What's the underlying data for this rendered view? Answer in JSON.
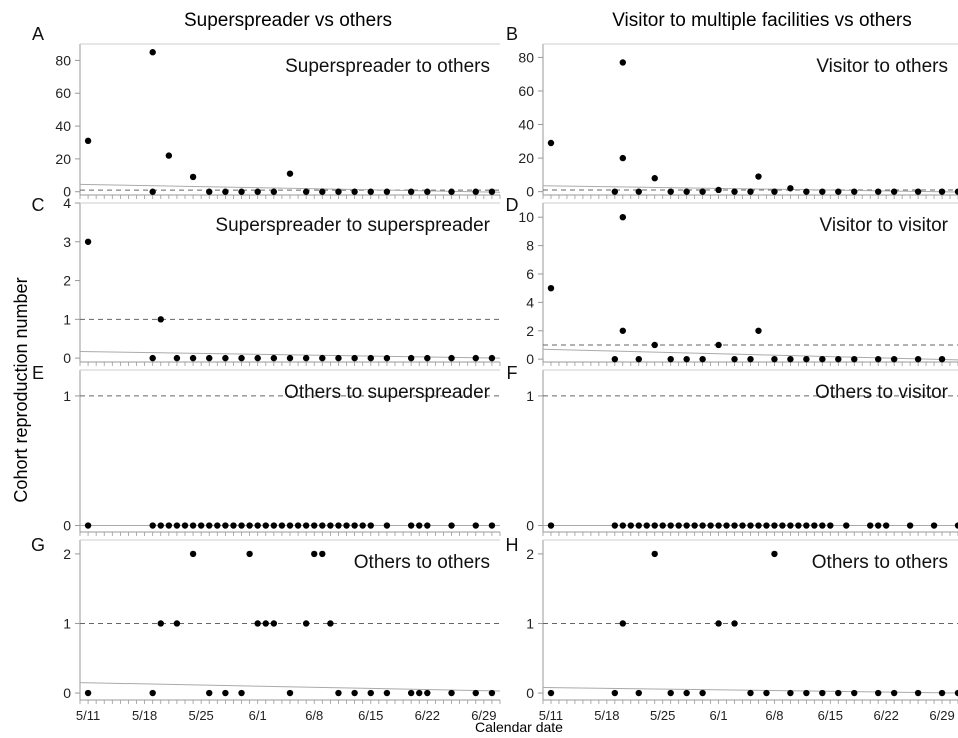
{
  "figure": {
    "col_titles": [
      "Superspreader vs others",
      "Visitor to multiple facilities vs others"
    ],
    "ylabel": "Cohort reproduction number",
    "xlabel": "Calendar date",
    "x_ticks": [
      "5/11",
      "5/18",
      "5/25",
      "6/1",
      "6/8",
      "6/15",
      "6/22",
      "6/29"
    ],
    "colors": {
      "points": "#000000",
      "axis": "#999999",
      "trend": "#aaaaaa",
      "reference": "#666666"
    }
  },
  "chart_data": [
    {
      "letter": "A",
      "title": "Superspreader to others",
      "type": "scatter",
      "ylim": [
        -2,
        90
      ],
      "yticks": [
        0,
        20,
        40,
        60,
        80
      ],
      "ref": 1,
      "trend": [
        4.5,
        -0.3
      ],
      "x": [
        "5/11",
        "5/19",
        "5/19",
        "5/21",
        "5/24",
        "5/26",
        "5/28",
        "5/30",
        "6/1",
        "6/3",
        "6/5",
        "6/7",
        "6/9",
        "6/11",
        "6/13",
        "6/15",
        "6/17",
        "6/20",
        "6/22",
        "6/25",
        "6/28",
        "6/30"
      ],
      "y": [
        31,
        0,
        85,
        22,
        9,
        0,
        0,
        0,
        0,
        0,
        11,
        0,
        0,
        0,
        0,
        0,
        0,
        0,
        0,
        0,
        0,
        0
      ]
    },
    {
      "letter": "B",
      "title": "Visitor to others",
      "type": "scatter",
      "ylim": [
        -2,
        88
      ],
      "yticks": [
        0,
        20,
        40,
        60,
        80
      ],
      "ref": 1,
      "trend": [
        3.5,
        -0.2
      ],
      "x": [
        "5/11",
        "5/19",
        "5/20",
        "5/20",
        "5/22",
        "5/24",
        "5/26",
        "5/28",
        "5/30",
        "6/1",
        "6/3",
        "6/5",
        "6/6",
        "6/8",
        "6/10",
        "6/12",
        "6/14",
        "6/16",
        "6/18",
        "6/21",
        "6/23",
        "6/26",
        "6/29",
        "7/1"
      ],
      "y": [
        29,
        0,
        77,
        20,
        0,
        8,
        0,
        0,
        0,
        1,
        0,
        0,
        9,
        0,
        2,
        0,
        0,
        0,
        0,
        0,
        0,
        0,
        0,
        0
      ]
    },
    {
      "letter": "C",
      "title": "Superspreader to superspreader",
      "type": "scatter",
      "ylim": [
        -0.1,
        4
      ],
      "yticks": [
        0,
        1,
        2,
        3,
        4
      ],
      "ref": 1,
      "trend": [
        0.17,
        0.0
      ],
      "x": [
        "5/11",
        "5/19",
        "5/20",
        "5/22",
        "5/24",
        "5/26",
        "5/28",
        "5/30",
        "6/1",
        "6/3",
        "6/5",
        "6/7",
        "6/9",
        "6/11",
        "6/13",
        "6/15",
        "6/17",
        "6/20",
        "6/22",
        "6/25",
        "6/28",
        "6/30"
      ],
      "y": [
        3,
        0,
        1,
        0,
        0,
        0,
        0,
        0,
        0,
        0,
        0,
        0,
        0,
        0,
        0,
        0,
        0,
        0,
        0,
        0,
        0,
        0
      ]
    },
    {
      "letter": "D",
      "title": "Visitor to visitor",
      "type": "scatter",
      "ylim": [
        -0.2,
        11
      ],
      "yticks": [
        0,
        2,
        4,
        6,
        8,
        10
      ],
      "ref": 1,
      "trend": [
        0.7,
        -0.05
      ],
      "x": [
        "5/11",
        "5/19",
        "5/20",
        "5/20",
        "5/22",
        "5/24",
        "5/26",
        "5/28",
        "5/30",
        "6/1",
        "6/3",
        "6/5",
        "6/6",
        "6/8",
        "6/10",
        "6/12",
        "6/14",
        "6/16",
        "6/18",
        "6/21",
        "6/23",
        "6/26",
        "6/29"
      ],
      "y": [
        5,
        0,
        10,
        2,
        0,
        1,
        0,
        0,
        0,
        1,
        0,
        0,
        2,
        0,
        0,
        0,
        0,
        0,
        0,
        0,
        0,
        0,
        0
      ]
    },
    {
      "letter": "E",
      "title": "Others to superspreader",
      "type": "scatter",
      "ylim": [
        -0.05,
        1.2
      ],
      "yticks": [
        0,
        1
      ],
      "ref": 1,
      "trend": [
        0.0,
        0.0
      ],
      "x": [
        "5/11",
        "5/19",
        "5/20",
        "5/21",
        "5/22",
        "5/23",
        "5/24",
        "5/25",
        "5/26",
        "5/27",
        "5/28",
        "5/29",
        "5/30",
        "5/31",
        "6/1",
        "6/2",
        "6/3",
        "6/4",
        "6/5",
        "6/6",
        "6/7",
        "6/8",
        "6/9",
        "6/10",
        "6/11",
        "6/12",
        "6/13",
        "6/14",
        "6/15",
        "6/17",
        "6/20",
        "6/21",
        "6/22",
        "6/25",
        "6/28",
        "6/30"
      ],
      "y": [
        0,
        0,
        0,
        0,
        0,
        0,
        0,
        0,
        0,
        0,
        0,
        0,
        0,
        0,
        0,
        0,
        0,
        0,
        0,
        0,
        0,
        0,
        0,
        0,
        0,
        0,
        0,
        0,
        0,
        0,
        0,
        0,
        0,
        0,
        0,
        0
      ]
    },
    {
      "letter": "F",
      "title": "Others to visitor",
      "type": "scatter",
      "ylim": [
        -0.05,
        1.2
      ],
      "yticks": [
        0,
        1
      ],
      "ref": 1,
      "trend": [
        0.0,
        0.0
      ],
      "x": [
        "5/11",
        "5/19",
        "5/20",
        "5/21",
        "5/22",
        "5/23",
        "5/24",
        "5/25",
        "5/26",
        "5/27",
        "5/28",
        "5/29",
        "5/30",
        "5/31",
        "6/1",
        "6/2",
        "6/3",
        "6/4",
        "6/5",
        "6/6",
        "6/7",
        "6/8",
        "6/9",
        "6/10",
        "6/11",
        "6/12",
        "6/13",
        "6/14",
        "6/15",
        "6/17",
        "6/20",
        "6/21",
        "6/22",
        "6/25",
        "6/28",
        "7/1"
      ],
      "y": [
        0,
        0,
        0,
        0,
        0,
        0,
        0,
        0,
        0,
        0,
        0,
        0,
        0,
        0,
        0,
        0,
        0,
        0,
        0,
        0,
        0,
        0,
        0,
        0,
        0,
        0,
        0,
        0,
        0,
        0,
        0,
        0,
        0,
        0,
        0,
        0
      ]
    },
    {
      "letter": "G",
      "title": "Others to others",
      "type": "scatter",
      "ylim": [
        -0.1,
        2.2
      ],
      "yticks": [
        0,
        1,
        2
      ],
      "ref": 1,
      "trend": [
        0.15,
        0.03
      ],
      "x": [
        "5/11",
        "5/19",
        "5/20",
        "5/22",
        "5/24",
        "5/26",
        "5/28",
        "5/30",
        "5/31",
        "6/1",
        "6/2",
        "6/3",
        "6/5",
        "6/7",
        "6/8",
        "6/9",
        "6/10",
        "6/11",
        "6/13",
        "6/15",
        "6/17",
        "6/20",
        "6/21",
        "6/22",
        "6/25",
        "6/28",
        "6/30"
      ],
      "y": [
        0,
        0,
        1,
        1,
        2,
        0,
        0,
        0,
        2,
        1,
        1,
        1,
        0,
        1,
        2,
        2,
        1,
        0,
        0,
        0,
        0,
        0,
        0,
        0,
        0,
        0,
        0
      ]
    },
    {
      "letter": "H",
      "title": "Others to others",
      "type": "scatter",
      "ylim": [
        -0.1,
        2.2
      ],
      "yticks": [
        0,
        1,
        2
      ],
      "ref": 1,
      "trend": [
        0.08,
        0.0
      ],
      "x": [
        "5/11",
        "5/19",
        "5/20",
        "5/22",
        "5/24",
        "5/26",
        "5/28",
        "5/30",
        "6/1",
        "6/3",
        "6/5",
        "6/7",
        "6/8",
        "6/10",
        "6/12",
        "6/14",
        "6/16",
        "6/18",
        "6/21",
        "6/23",
        "6/26",
        "6/29",
        "7/1"
      ],
      "y": [
        0,
        0,
        1,
        0,
        2,
        0,
        0,
        0,
        1,
        1,
        0,
        0,
        2,
        0,
        0,
        0,
        0,
        0,
        0,
        0,
        0,
        0,
        0
      ]
    }
  ]
}
